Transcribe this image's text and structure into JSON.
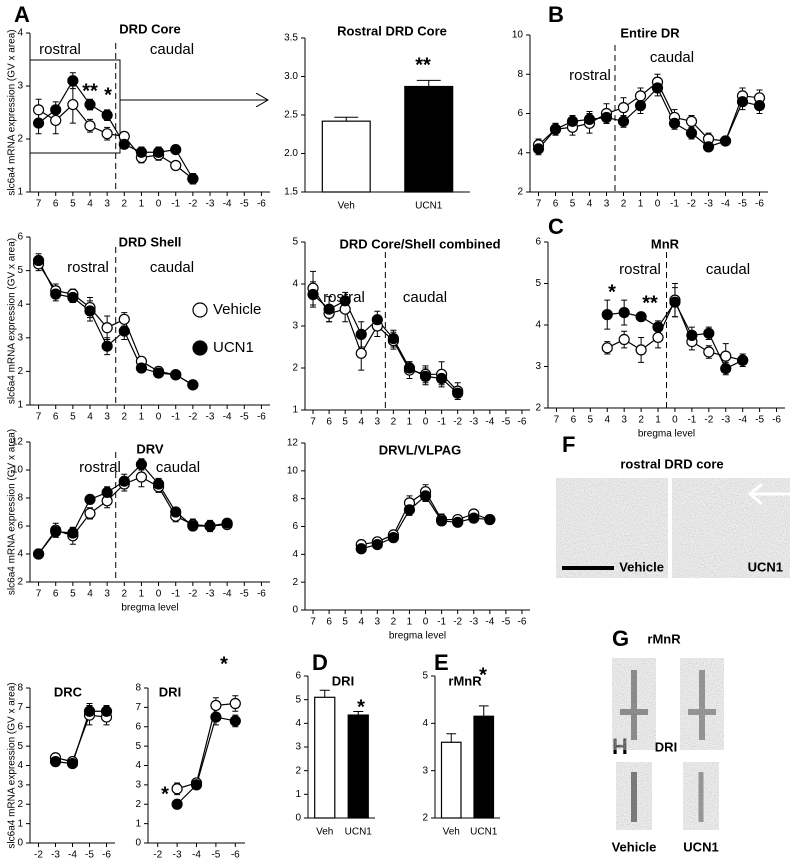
{
  "panel_labels": [
    "A",
    "B",
    "C",
    "D",
    "E",
    "F",
    "G",
    "H"
  ],
  "images": {
    "f_title": "rostral DRD core",
    "f_left": "Vehicle",
    "f_right": "UCN1",
    "g_title": "rMnR",
    "h_title": "DRI",
    "h_left": "Vehicle",
    "h_right": "UCN1"
  },
  "chart_data": [
    {
      "type": "line",
      "title": "DRD Core",
      "ylabel": "slc6a4 mRNA expression (GV x area)",
      "x": [
        7,
        6,
        5,
        4,
        3,
        2,
        1,
        0,
        -1,
        -2
      ],
      "xlim": [
        7.5,
        -6.5
      ],
      "xticks": [
        7,
        6,
        5,
        4,
        3,
        2,
        1,
        0,
        -1,
        -2,
        -3,
        -4,
        -5,
        -6
      ],
      "ylim": [
        1,
        4
      ],
      "yticks": [
        1,
        2,
        3,
        4
      ],
      "divider": 2.5,
      "annotations": [
        "rostral",
        "caudal",
        "**",
        "*"
      ],
      "series": [
        {
          "color": "#ffffff",
          "values": [
            2.55,
            2.35,
            2.65,
            2.25,
            2.1,
            2.05,
            1.65,
            1.7,
            1.5,
            1.25
          ],
          "errors": [
            0.2,
            0.25,
            0.35,
            0.12,
            0.12,
            0.08,
            0.1,
            0.1,
            0.08,
            0.08
          ]
        },
        {
          "color": "#000000",
          "values": [
            2.3,
            2.55,
            3.1,
            2.65,
            2.45,
            1.9,
            1.75,
            1.75,
            1.8,
            1.25
          ],
          "errors": [
            0.2,
            0.15,
            0.15,
            0.1,
            0.1,
            0.08,
            0.1,
            0.1,
            0.08,
            0.1
          ]
        }
      ]
    },
    {
      "type": "bar",
      "title": "Rostral DRD Core",
      "categories": [
        "Veh",
        "UCN1"
      ],
      "values": [
        2.42,
        2.87
      ],
      "errors": [
        0.05,
        0.08
      ],
      "colors": [
        "#ffffff",
        "#000000"
      ],
      "ylim": [
        1.5,
        3.5
      ],
      "yticks": [
        1.5,
        {
          "value": 2,
          "label": "2.0"
        },
        2.5,
        {
          "value": 3,
          "label": "3.0"
        },
        3.5
      ],
      "annotations": [
        "**"
      ]
    },
    {
      "type": "line",
      "title": "Entire DR",
      "x": [
        7,
        6,
        5,
        4,
        3,
        2,
        1,
        0,
        -1,
        -2,
        -3,
        -4,
        -5,
        -6
      ],
      "xlim": [
        7.5,
        -6.5
      ],
      "xticks": [
        7,
        6,
        5,
        4,
        3,
        2,
        1,
        0,
        -1,
        -2,
        -3,
        -4,
        -5,
        -6
      ],
      "ylim": [
        2,
        10
      ],
      "yticks": [
        2,
        4,
        6,
        8,
        10
      ],
      "divider": 2.5,
      "annotations": [
        "rostral",
        "caudal"
      ],
      "series": [
        {
          "color": "#ffffff",
          "values": [
            4.4,
            5.2,
            5.3,
            5.5,
            6.0,
            6.3,
            6.9,
            7.6,
            5.8,
            5.6,
            4.7,
            4.6,
            6.9,
            6.8
          ],
          "errors": [
            0.3,
            0.3,
            0.4,
            0.5,
            0.5,
            0.5,
            0.4,
            0.4,
            0.4,
            0.3,
            0.3,
            0.2,
            0.4,
            0.4
          ]
        },
        {
          "color": "#000000",
          "values": [
            4.2,
            5.2,
            5.6,
            5.7,
            5.8,
            5.6,
            6.4,
            7.3,
            5.5,
            5.0,
            4.3,
            4.6,
            6.6,
            6.4
          ],
          "errors": [
            0.3,
            0.3,
            0.3,
            0.4,
            0.3,
            0.3,
            0.4,
            0.4,
            0.3,
            0.3,
            0.2,
            0.2,
            0.4,
            0.4
          ]
        }
      ]
    },
    {
      "type": "line",
      "title": "DRD Shell",
      "ylabel": "slc6a4 mRNA expression (GV x area)",
      "legend": true,
      "x": [
        7,
        6,
        5,
        4,
        3,
        2,
        1,
        0,
        -1,
        -2
      ],
      "xlim": [
        7.5,
        -6.5
      ],
      "xticks": [
        7,
        6,
        5,
        4,
        3,
        2,
        1,
        0,
        -1,
        -2,
        -3,
        -4,
        -5,
        -6
      ],
      "ylim": [
        1,
        6
      ],
      "yticks": [
        1,
        2,
        3,
        4,
        5,
        6
      ],
      "divider": 2.5,
      "annotations": [
        "rostral",
        "caudal"
      ],
      "series": [
        {
          "name": "Vehicle",
          "color": "#ffffff",
          "values": [
            5.2,
            4.4,
            4.3,
            3.9,
            3.3,
            3.55,
            2.3,
            2.0,
            1.9,
            1.6
          ],
          "errors": [
            0.2,
            0.2,
            0.15,
            0.3,
            0.35,
            0.2,
            0.1,
            0.1,
            0.08,
            0.08
          ]
        },
        {
          "name": "UCN1",
          "color": "#000000",
          "values": [
            5.3,
            4.3,
            4.2,
            3.8,
            2.75,
            3.2,
            2.1,
            1.95,
            1.9,
            1.6
          ],
          "errors": [
            0.2,
            0.2,
            0.15,
            0.3,
            0.25,
            0.25,
            0.1,
            0.1,
            0.08,
            0.08
          ]
        }
      ]
    },
    {
      "type": "line",
      "title": "DRD Core/Shell combined",
      "x": [
        7,
        6,
        5,
        4,
        3,
        2,
        1,
        0,
        -1,
        -2
      ],
      "xlim": [
        7.5,
        -6.5
      ],
      "xticks": [
        7,
        6,
        5,
        4,
        3,
        2,
        1,
        0,
        -1,
        -2,
        -3,
        -4,
        -5,
        -6
      ],
      "ylim": [
        1,
        5
      ],
      "yticks": [
        1,
        2,
        3,
        4,
        5
      ],
      "divider": 2.5,
      "annotations": [
        "rostral",
        "caudal"
      ],
      "series": [
        {
          "color": "#ffffff",
          "values": [
            3.9,
            3.3,
            3.4,
            2.35,
            3.0,
            2.65,
            1.95,
            1.85,
            1.85,
            1.45
          ],
          "errors": [
            0.4,
            0.2,
            0.3,
            0.4,
            0.25,
            0.2,
            0.2,
            0.2,
            0.3,
            0.2
          ]
        },
        {
          "color": "#000000",
          "values": [
            3.75,
            3.4,
            3.6,
            2.8,
            3.15,
            2.7,
            2.0,
            1.8,
            1.75,
            1.4
          ],
          "errors": [
            0.3,
            0.3,
            0.2,
            0.3,
            0.2,
            0.2,
            0.15,
            0.2,
            0.15,
            0.1
          ]
        }
      ]
    },
    {
      "type": "line",
      "title": "MnR",
      "xlabel": "bregma level",
      "x": [
        4,
        3,
        2,
        1,
        0,
        -1,
        -2,
        -3,
        -4
      ],
      "xlim": [
        7.5,
        -6.5
      ],
      "xticks": [
        7,
        6,
        5,
        4,
        3,
        2,
        1,
        0,
        -1,
        -2,
        -3,
        -4,
        -5,
        -6
      ],
      "ylim": [
        2,
        6
      ],
      "yticks": [
        2,
        3,
        4,
        5,
        6
      ],
      "divider": 0.5,
      "annotations": [
        "rostral",
        "caudal",
        "*",
        "**"
      ],
      "series": [
        {
          "color": "#ffffff",
          "values": [
            3.45,
            3.65,
            3.4,
            3.7,
            4.6,
            3.6,
            3.35,
            3.25,
            3.15
          ],
          "errors": [
            0.15,
            0.2,
            0.3,
            0.25,
            0.4,
            0.2,
            0.15,
            0.3,
            0.15
          ]
        },
        {
          "color": "#000000",
          "values": [
            4.25,
            4.3,
            4.2,
            3.95,
            4.55,
            3.75,
            3.8,
            2.95,
            3.15
          ],
          "errors": [
            0.35,
            0.3,
            0.1,
            0.15,
            0.35,
            0.2,
            0.15,
            0.15,
            0.1
          ]
        }
      ]
    },
    {
      "type": "line",
      "title": "DRV",
      "ylabel": "slc6a4 mRNA expression (GV x area)",
      "xlabel": "bregma level",
      "x": [
        7,
        6,
        5,
        4,
        3,
        2,
        1,
        0,
        -1,
        -2,
        -3,
        -4
      ],
      "xlim": [
        7.5,
        -6.5
      ],
      "xticks": [
        7,
        6,
        5,
        4,
        3,
        2,
        1,
        0,
        -1,
        -2,
        -3,
        -4,
        -5,
        -6
      ],
      "ylim": [
        2,
        12
      ],
      "yticks": [
        2,
        4,
        6,
        8,
        10,
        12
      ],
      "divider": 2.5,
      "annotations": [
        "rostral",
        "caudal"
      ],
      "series": [
        {
          "color": "#ffffff",
          "values": [
            4.0,
            5.7,
            5.3,
            6.9,
            7.8,
            9.0,
            9.5,
            8.8,
            6.7,
            6.1,
            6.0,
            6.1
          ],
          "errors": [
            0.3,
            0.5,
            0.6,
            0.4,
            0.5,
            0.5,
            0.7,
            0.4,
            0.4,
            0.4,
            0.4,
            0.3
          ]
        },
        {
          "color": "#000000",
          "values": [
            4.0,
            5.6,
            5.5,
            7.9,
            8.4,
            9.2,
            10.4,
            9.0,
            7.0,
            6.0,
            6.0,
            6.2
          ],
          "errors": [
            0.3,
            0.4,
            0.4,
            0.3,
            0.4,
            0.5,
            0.4,
            0.4,
            0.3,
            0.3,
            0.3,
            0.2
          ]
        }
      ]
    },
    {
      "type": "line",
      "title": "DRVL/VLPAG",
      "xlabel": "bregma level",
      "x": [
        4,
        3,
        2,
        1,
        0,
        -1,
        -2,
        -3,
        -4
      ],
      "xlim": [
        7.5,
        -6.5
      ],
      "xticks": [
        7,
        6,
        5,
        4,
        3,
        2,
        1,
        0,
        -1,
        -2,
        -3,
        -4,
        -5,
        -6
      ],
      "ylim": [
        0,
        12
      ],
      "yticks": [
        0,
        2,
        4,
        6,
        8,
        10,
        12
      ],
      "series": [
        {
          "color": "#ffffff",
          "values": [
            4.7,
            4.9,
            5.4,
            7.7,
            8.5,
            6.5,
            6.5,
            6.9,
            6.5
          ],
          "errors": [
            0.3,
            0.3,
            0.3,
            0.5,
            0.5,
            0.4,
            0.3,
            0.3,
            0.3
          ]
        },
        {
          "color": "#000000",
          "values": [
            4.4,
            4.7,
            5.2,
            7.2,
            8.2,
            6.4,
            6.3,
            6.6,
            6.5
          ],
          "errors": [
            0.3,
            0.2,
            0.3,
            0.4,
            0.4,
            0.3,
            0.3,
            0.3,
            0.2
          ]
        }
      ]
    },
    {
      "type": "line",
      "title": "DRC",
      "ylabel": "slc6a4 mRNA expression (GV x area)",
      "xlabel": "bregma level",
      "x": [
        -3,
        -4,
        -5,
        -6
      ],
      "xlim": [
        -1.5,
        -6.5
      ],
      "xticks": [
        -2,
        -3,
        -4,
        -5,
        -6
      ],
      "ylim": [
        0,
        8
      ],
      "yticks": [
        0,
        1,
        2,
        3,
        4,
        5,
        6,
        7,
        8
      ],
      "series": [
        {
          "color": "#ffffff",
          "values": [
            4.4,
            4.2,
            6.6,
            6.5
          ],
          "errors": [
            0.2,
            0.2,
            0.5,
            0.4
          ]
        },
        {
          "color": "#000000",
          "values": [
            4.2,
            4.1,
            6.8,
            6.8
          ],
          "errors": [
            0.15,
            0.15,
            0.4,
            0.3
          ]
        }
      ]
    },
    {
      "type": "line",
      "title": "DRI",
      "xlabel": "bregma level",
      "x": [
        -3,
        -4,
        -5,
        -6
      ],
      "xlim": [
        -1.5,
        -6.5
      ],
      "xticks": [
        -2,
        -3,
        -4,
        -5,
        -6
      ],
      "ylim": [
        0,
        8
      ],
      "yticks": [
        0,
        1,
        2,
        3,
        4,
        5,
        6,
        7,
        8
      ],
      "annotations": [
        "*",
        "*"
      ],
      "series": [
        {
          "color": "#ffffff",
          "values": [
            2.8,
            3.1,
            7.1,
            7.2
          ],
          "errors": [
            0.3,
            0.2,
            0.4,
            0.4
          ]
        },
        {
          "color": "#000000",
          "values": [
            2.0,
            3.0,
            6.5,
            6.3
          ],
          "errors": [
            0.15,
            0.2,
            0.4,
            0.3
          ]
        }
      ]
    },
    {
      "type": "bar",
      "title": "DRI",
      "categories": [
        "Veh",
        "UCN1"
      ],
      "values": [
        5.1,
        4.35
      ],
      "errors": [
        0.3,
        0.15
      ],
      "colors": [
        "#ffffff",
        "#000000"
      ],
      "ylim": [
        0,
        6
      ],
      "yticks": [
        0,
        1,
        2,
        3,
        4,
        5,
        6
      ],
      "annotations": [
        "*"
      ]
    },
    {
      "type": "bar",
      "title": "rMnR",
      "categories": [
        "Veh",
        "UCN1"
      ],
      "values": [
        3.6,
        4.15
      ],
      "errors": [
        0.18,
        0.22
      ],
      "colors": [
        "#ffffff",
        "#000000"
      ],
      "ylim": [
        2,
        5
      ],
      "yticks": [
        2,
        3,
        4,
        5
      ],
      "annotations": [
        "*"
      ]
    }
  ]
}
